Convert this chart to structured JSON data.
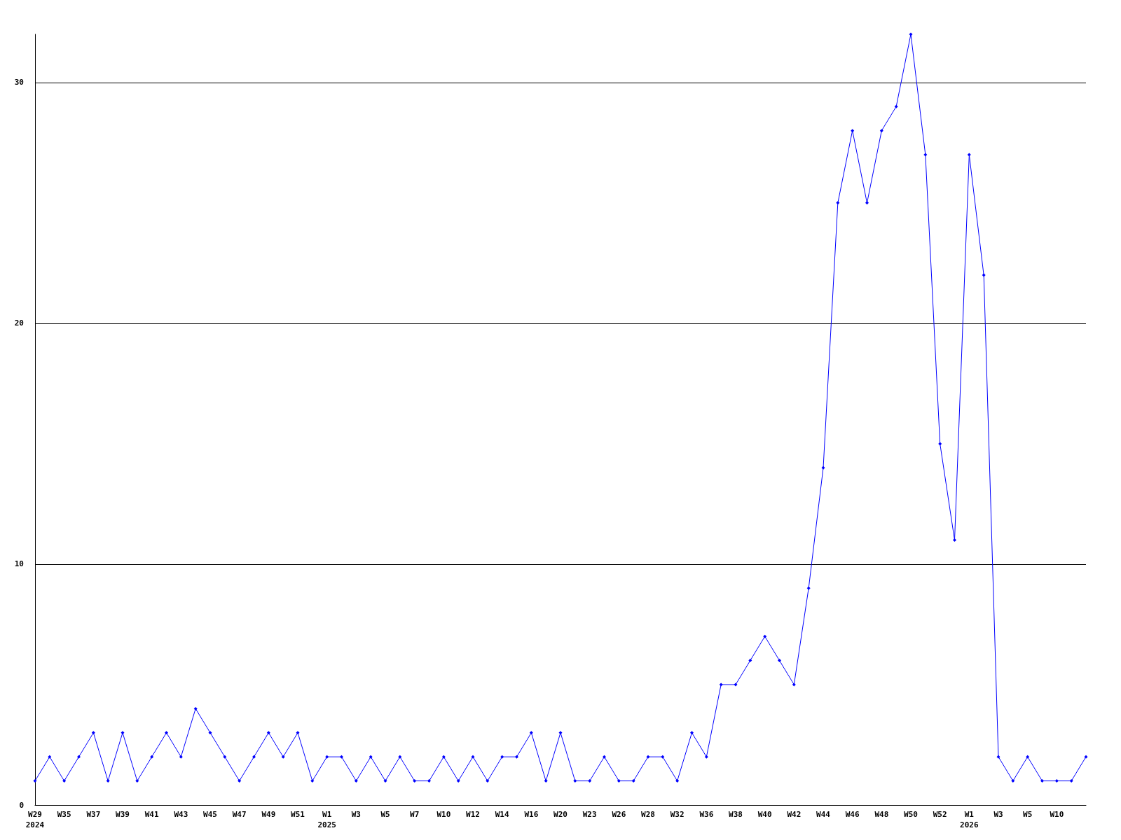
{
  "chart_data": {
    "type": "line",
    "categories": [
      "W29\n2024",
      null,
      "W35",
      null,
      "W37",
      null,
      "W39",
      null,
      "W41",
      null,
      "W43",
      null,
      "W45",
      null,
      "W47",
      null,
      "W49",
      null,
      "W51",
      null,
      "W1\n2025",
      null,
      "W3",
      null,
      "W5",
      null,
      "W7",
      null,
      "W10",
      null,
      "W12",
      null,
      "W14",
      null,
      "W16",
      null,
      "W20",
      null,
      "W23",
      null,
      "W26",
      null,
      "W28",
      null,
      "W32",
      null,
      "W36",
      null,
      "W38",
      null,
      "W40",
      null,
      "W42",
      null,
      "W44",
      null,
      "W46",
      null,
      "W48",
      null,
      "W50",
      null,
      "W52",
      null,
      "W1\n2026",
      null,
      "W3",
      null,
      "W5",
      null,
      "W10",
      null,
      null
    ],
    "series": [
      {
        "color": "#0000ff",
        "values": [
          1,
          2,
          1,
          2,
          3,
          1,
          3,
          1,
          2,
          3,
          2,
          4,
          3,
          2,
          1,
          2,
          3,
          2,
          3,
          1,
          2,
          2,
          1,
          2,
          1,
          2,
          1,
          1,
          2,
          1,
          2,
          1,
          2,
          2,
          3,
          1,
          3,
          1,
          1,
          2,
          1,
          1,
          2,
          2,
          1,
          3,
          2,
          5,
          5,
          6,
          7,
          6,
          5,
          9,
          14,
          25,
          28,
          25,
          28,
          29,
          32,
          27,
          15,
          11,
          27,
          22,
          2,
          1,
          2,
          1,
          1,
          1,
          2
        ]
      }
    ],
    "ylim": [
      0,
      32
    ],
    "yticks": [
      0,
      10,
      20,
      30
    ],
    "grid": "y",
    "marker": "diamond",
    "line_style": "solid"
  }
}
